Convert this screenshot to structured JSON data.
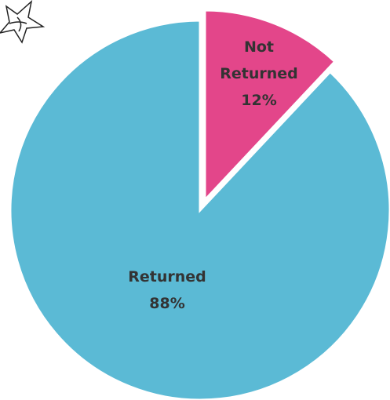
{
  "chart_data": {
    "type": "pie",
    "categories": [
      "Not Returned",
      "Returned"
    ],
    "values": [
      12,
      88
    ],
    "value_labels": [
      "12%",
      "88%"
    ],
    "colors": [
      "#e3468a",
      "#5bbad5"
    ]
  }
}
